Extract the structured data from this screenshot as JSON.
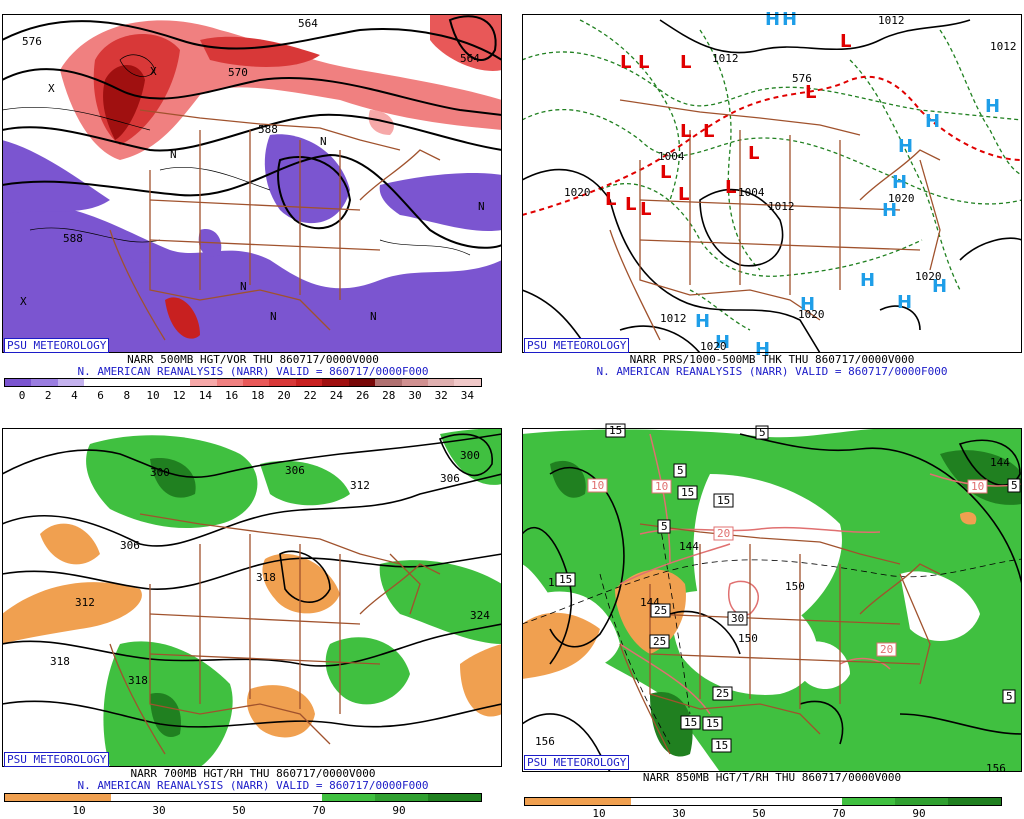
{
  "panels": {
    "p1": {
      "badge": "PSU METEOROLOGY",
      "caption1": "NARR 500MB HGT/VOR THU 860717/0000V000",
      "caption2": "N. AMERICAN REANALYSIS (NARR) VALID = 860717/0000F000",
      "scale_labels": [
        "0",
        "2",
        "4",
        "6",
        "8",
        "10",
        "12",
        "14",
        "16",
        "18",
        "20",
        "22",
        "24",
        "26",
        "28",
        "30",
        "32",
        "34"
      ],
      "scale_colors": [
        "#7b55d0",
        "#9a7de0",
        "#c4b2ee",
        "#ffffff",
        "#ffffff",
        "#ffffff",
        "#ffffff",
        "#f6a8a8",
        "#f08080",
        "#e85858",
        "#d83838",
        "#c82020",
        "#a01010",
        "#780808",
        "#b07070",
        "#d09090",
        "#e0b0b0",
        "#f0c8c8"
      ],
      "contour_labels": [
        "576",
        "564",
        "564",
        "570",
        "588",
        "588",
        "N",
        "N",
        "N",
        "N",
        "N",
        "N",
        "X",
        "X",
        "X"
      ]
    },
    "p2": {
      "badge": "PSU METEOROLOGY",
      "caption1": "NARR PRS/1000-500MB THK THU 860717/0000V000",
      "caption2": "N. AMERICAN REANALYSIS (NARR) VALID = 860717/0000F000",
      "low_symbol": "L",
      "high_symbol": "H",
      "isobar_labels": [
        "1012",
        "1012",
        "1012",
        "1020",
        "1004",
        "1004",
        "1012",
        "1020",
        "1012",
        "1020",
        "1020",
        "576",
        "1020"
      ]
    },
    "p3": {
      "badge": "PSU METEOROLOGY",
      "caption1": "NARR 700MB HGT/RH THU 860717/0000V000",
      "caption2": "N. AMERICAN REANALYSIS (NARR) VALID = 860717/0000F000",
      "scale_labels": [
        "10",
        "30",
        "50",
        "70",
        "90"
      ],
      "scale_colors": [
        "#f0a050",
        "#f0a050",
        "#ffffff",
        "#ffffff",
        "#ffffff",
        "#ffffff",
        "#40c040",
        "#30a030",
        "#208020"
      ],
      "contour_labels": [
        "300",
        "306",
        "312",
        "306",
        "312",
        "318",
        "318",
        "324",
        "300",
        "306",
        "318"
      ]
    },
    "p4": {
      "badge": "PSU METEOROLOGY",
      "caption1": "NARR 850MB HGT/T/RH THU 860717/0000V000",
      "scale_labels": [
        "10",
        "30",
        "50",
        "70",
        "90"
      ],
      "scale_colors": [
        "#f0a050",
        "#f0a050",
        "#ffffff",
        "#ffffff",
        "#ffffff",
        "#ffffff",
        "#40c040",
        "#30a030",
        "#208020"
      ],
      "contour_labels": [
        "144",
        "150",
        "156",
        "156",
        "156",
        "144",
        "144",
        "150"
      ],
      "box_labels": [
        "15",
        "5",
        "5",
        "15",
        "5",
        "10",
        "20",
        "10",
        "5",
        "25",
        "25",
        "30",
        "20",
        "25",
        "15",
        "15",
        "15",
        "5",
        "15",
        "15",
        "10"
      ]
    }
  },
  "colors": {
    "purple": "#7b55d0",
    "red_light": "#f08080",
    "red_dark": "#a01010",
    "green": "#40c040",
    "green_dark": "#208020",
    "orange": "#f0a050",
    "border_brown": "#a0522d",
    "low_red": "#e00000",
    "high_blue": "#1e9ee8",
    "badge_blue": "#1c1cc8"
  }
}
